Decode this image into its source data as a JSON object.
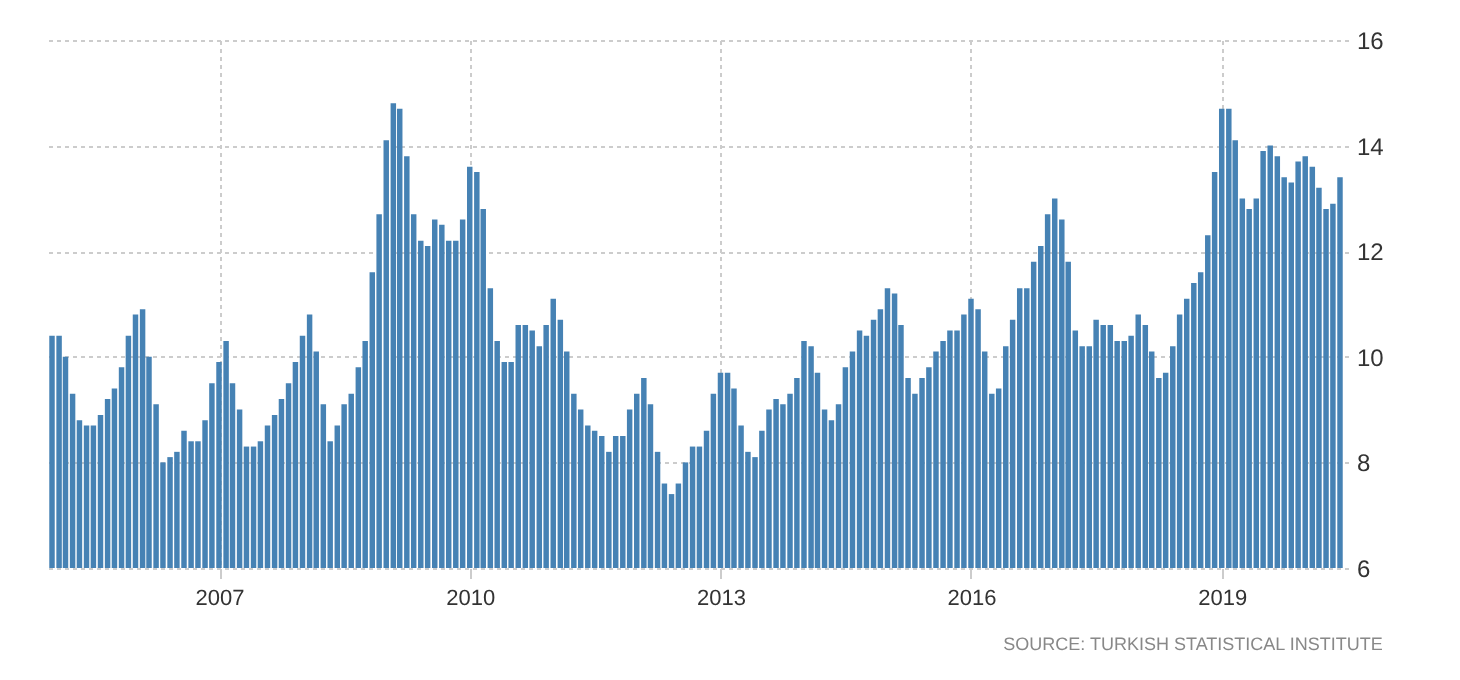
{
  "chart_data": {
    "type": "bar",
    "color": "#4682b4",
    "x": [
      "2005-01",
      "2005-02",
      "2005-03",
      "2005-04",
      "2005-05",
      "2005-06",
      "2005-07",
      "2005-08",
      "2005-09",
      "2005-10",
      "2005-11",
      "2005-12",
      "2006-01",
      "2006-02",
      "2006-03",
      "2006-04",
      "2006-05",
      "2006-06",
      "2006-07",
      "2006-08",
      "2006-09",
      "2006-10",
      "2006-11",
      "2006-12",
      "2007-01",
      "2007-02",
      "2007-03",
      "2007-04",
      "2007-05",
      "2007-06",
      "2007-07",
      "2007-08",
      "2007-09",
      "2007-10",
      "2007-11",
      "2007-12",
      "2008-01",
      "2008-02",
      "2008-03",
      "2008-04",
      "2008-05",
      "2008-06",
      "2008-07",
      "2008-08",
      "2008-09",
      "2008-10",
      "2008-11",
      "2008-12",
      "2009-01",
      "2009-02",
      "2009-03",
      "2009-04",
      "2009-05",
      "2009-06",
      "2009-07",
      "2009-08",
      "2009-09",
      "2009-10",
      "2009-11",
      "2009-12",
      "2010-01",
      "2010-02",
      "2010-03",
      "2010-04",
      "2010-05",
      "2010-06",
      "2010-07",
      "2010-08",
      "2010-09",
      "2010-10",
      "2010-11",
      "2010-12",
      "2011-01",
      "2011-02",
      "2011-03",
      "2011-04",
      "2011-05",
      "2011-06",
      "2011-07",
      "2011-08",
      "2011-09",
      "2011-10",
      "2011-11",
      "2011-12",
      "2012-01",
      "2012-02",
      "2012-03",
      "2012-04",
      "2012-05",
      "2012-06",
      "2012-07",
      "2012-08",
      "2012-09",
      "2012-10",
      "2012-11",
      "2012-12",
      "2013-01",
      "2013-02",
      "2013-03",
      "2013-04",
      "2013-05",
      "2013-06",
      "2013-07",
      "2013-08",
      "2013-09",
      "2013-10",
      "2013-11",
      "2013-12",
      "2014-01",
      "2014-02",
      "2014-03",
      "2014-04",
      "2014-05",
      "2014-06",
      "2014-07",
      "2014-08",
      "2014-09",
      "2014-10",
      "2014-11",
      "2014-12",
      "2015-01",
      "2015-02",
      "2015-03",
      "2015-04",
      "2015-05",
      "2015-06",
      "2015-07",
      "2015-08",
      "2015-09",
      "2015-10",
      "2015-11",
      "2015-12",
      "2016-01",
      "2016-02",
      "2016-03",
      "2016-04",
      "2016-05",
      "2016-06",
      "2016-07",
      "2016-08",
      "2016-09",
      "2016-10",
      "2016-11",
      "2016-12",
      "2017-01",
      "2017-02",
      "2017-03",
      "2017-04",
      "2017-05",
      "2017-06",
      "2017-07",
      "2017-08",
      "2017-09",
      "2017-10",
      "2017-11",
      "2017-12",
      "2018-01",
      "2018-02",
      "2018-03",
      "2018-04",
      "2018-05",
      "2018-06",
      "2018-07",
      "2018-08",
      "2018-09",
      "2018-10",
      "2018-11",
      "2018-12",
      "2019-01",
      "2019-02",
      "2019-03",
      "2019-04",
      "2019-05",
      "2019-06",
      "2019-07",
      "2019-08",
      "2019-09",
      "2019-10",
      "2019-11",
      "2019-12",
      "2020-01",
      "2020-02",
      "2020-03",
      "2020-04",
      "2020-05",
      "2020-06"
    ],
    "values": [
      10.4,
      10.4,
      10.0,
      9.3,
      8.8,
      8.7,
      8.7,
      8.9,
      9.2,
      9.4,
      9.8,
      10.4,
      10.8,
      10.9,
      10.0,
      9.1,
      8.0,
      8.1,
      8.2,
      8.6,
      8.4,
      8.4,
      8.8,
      9.5,
      9.9,
      10.3,
      9.5,
      9.0,
      8.3,
      8.3,
      8.4,
      8.7,
      8.9,
      9.2,
      9.5,
      9.9,
      10.4,
      10.8,
      10.1,
      9.1,
      8.4,
      8.7,
      9.1,
      9.3,
      9.8,
      10.3,
      11.6,
      12.7,
      14.1,
      14.8,
      14.7,
      13.8,
      12.7,
      12.2,
      12.1,
      12.6,
      12.5,
      12.2,
      12.2,
      12.6,
      13.6,
      13.5,
      12.8,
      11.3,
      10.3,
      9.9,
      9.9,
      10.6,
      10.6,
      10.5,
      10.2,
      10.6,
      11.1,
      10.7,
      10.1,
      9.3,
      9.0,
      8.7,
      8.6,
      8.5,
      8.2,
      8.5,
      8.5,
      9.0,
      9.3,
      9.6,
      9.1,
      8.2,
      7.6,
      7.4,
      7.6,
      8.0,
      8.3,
      8.3,
      8.6,
      9.3,
      9.7,
      9.7,
      9.4,
      8.7,
      8.2,
      8.1,
      8.6,
      9.0,
      9.2,
      9.1,
      9.3,
      9.6,
      10.3,
      10.2,
      9.7,
      9.0,
      8.8,
      9.1,
      9.8,
      10.1,
      10.5,
      10.4,
      10.7,
      10.9,
      11.3,
      11.2,
      10.6,
      9.6,
      9.3,
      9.6,
      9.8,
      10.1,
      10.3,
      10.5,
      10.5,
      10.8,
      11.1,
      10.9,
      10.1,
      9.3,
      9.4,
      10.2,
      10.7,
      11.3,
      11.3,
      11.8,
      12.1,
      12.7,
      13.0,
      12.6,
      11.8,
      10.5,
      10.2,
      10.2,
      10.7,
      10.6,
      10.6,
      10.3,
      10.3,
      10.4,
      10.8,
      10.6,
      10.1,
      9.6,
      9.7,
      10.2,
      10.8,
      11.1,
      11.4,
      11.6,
      12.3,
      13.5,
      14.7,
      14.7,
      14.1,
      13.0,
      12.8,
      13.0,
      13.9,
      14.0,
      13.8,
      13.4,
      13.3,
      13.7,
      13.8,
      13.6,
      13.2,
      12.8,
      12.9,
      13.4
    ],
    "xlim": [
      "2005-01",
      "2020-06"
    ],
    "xticks": [
      {
        "value": "2007-01",
        "label": "2007"
      },
      {
        "value": "2010-01",
        "label": "2010"
      },
      {
        "value": "2013-01",
        "label": "2013"
      },
      {
        "value": "2016-01",
        "label": "2016"
      },
      {
        "value": "2019-01",
        "label": "2019"
      }
    ],
    "ylim": [
      6,
      16
    ],
    "yticks": [
      6,
      8,
      10,
      12,
      14,
      16
    ],
    "grid": true,
    "annotations": [
      "SOURCE: TURKISH STATISTICAL INSTITUTE"
    ]
  }
}
